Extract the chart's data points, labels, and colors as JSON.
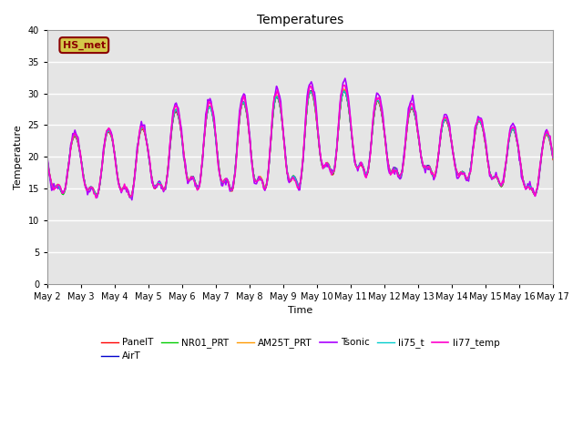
{
  "title": "Temperatures",
  "xlabel": "Time",
  "ylabel": "Temperature",
  "ylim": [
    0,
    40
  ],
  "yticks": [
    0,
    5,
    10,
    15,
    20,
    25,
    30,
    35,
    40
  ],
  "background_color": "#e5e5e5",
  "annotation_text": "HS_met",
  "annotation_color": "#8b0000",
  "annotation_bg": "#d4c84a",
  "series_names": [
    "PanelT",
    "AirT",
    "NR01_PRT",
    "AM25T_PRT",
    "Tsonic",
    "li75_t",
    "li77_temp"
  ],
  "series_colors": [
    "#ff0000",
    "#0000cc",
    "#00cc00",
    "#ff9900",
    "#aa00ff",
    "#00cccc",
    "#ff00cc"
  ],
  "series_lw": [
    1.0,
    1.0,
    1.0,
    1.0,
    1.2,
    1.0,
    1.2
  ],
  "n_points": 480,
  "x_start": 1.0,
  "x_end": 16.0,
  "xtick_positions": [
    1,
    2,
    3,
    4,
    5,
    6,
    7,
    8,
    9,
    10,
    11,
    12,
    13,
    14,
    15,
    16
  ],
  "xtick_labels": [
    "May 2",
    "May 3",
    "May 4",
    "May 5",
    "May 6",
    "May 7",
    "May 8",
    "May 9",
    "May 10",
    "May 11",
    "May 12",
    "May 13",
    "May 14",
    "May 15",
    "May 16",
    "May 17"
  ]
}
